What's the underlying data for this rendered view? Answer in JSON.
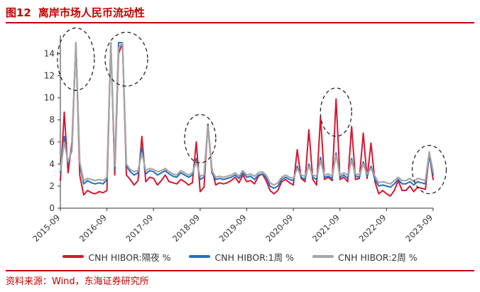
{
  "figure": {
    "number": "图12",
    "title": "离岸市场人民币流动性",
    "source": "资料来源：Wind，东海证券研究所"
  },
  "colors": {
    "overnight": "#d7172f",
    "one_week": "#2370c0",
    "two_week": "#a6a6a6",
    "title": "#c00000",
    "annotation": "#222222"
  },
  "chart_data": {
    "type": "line",
    "title": "离岸市场人民币流动性",
    "xlabel": "",
    "ylabel": "",
    "x_range": [
      "2015-09",
      "2023-09"
    ],
    "ylim": [
      0,
      15
    ],
    "yticks": [
      0,
      2,
      4,
      6,
      8,
      10,
      12,
      14
    ],
    "xticks": [
      "2015-09",
      "2016-09",
      "2017-09",
      "2018-09",
      "2019-09",
      "2020-09",
      "2021-09",
      "2022-09",
      "2023-09"
    ],
    "grid": false,
    "legend": "bottom",
    "x": [
      "2015-09",
      "2015-10",
      "2015-11",
      "2015-12",
      "2016-01",
      "2016-02",
      "2016-03",
      "2016-04",
      "2016-05",
      "2016-06",
      "2016-07",
      "2016-08",
      "2016-09",
      "2016-10",
      "2016-11",
      "2016-12",
      "2017-01",
      "2017-02",
      "2017-03",
      "2017-04",
      "2017-05",
      "2017-06",
      "2017-07",
      "2017-08",
      "2017-09",
      "2017-10",
      "2017-11",
      "2017-12",
      "2018-01",
      "2018-02",
      "2018-03",
      "2018-04",
      "2018-05",
      "2018-06",
      "2018-07",
      "2018-08",
      "2018-09",
      "2018-10",
      "2018-11",
      "2018-12",
      "2019-01",
      "2019-02",
      "2019-03",
      "2019-04",
      "2019-05",
      "2019-06",
      "2019-07",
      "2019-08",
      "2019-09",
      "2019-10",
      "2019-11",
      "2019-12",
      "2020-01",
      "2020-02",
      "2020-03",
      "2020-04",
      "2020-05",
      "2020-06",
      "2020-07",
      "2020-08",
      "2020-09",
      "2020-10",
      "2020-11",
      "2020-12",
      "2021-01",
      "2021-02",
      "2021-03",
      "2021-04",
      "2021-05",
      "2021-06",
      "2021-07",
      "2021-08",
      "2021-09",
      "2021-10",
      "2021-11",
      "2021-12",
      "2022-01",
      "2022-02",
      "2022-03",
      "2022-04",
      "2022-05",
      "2022-06",
      "2022-07",
      "2022-08",
      "2022-09",
      "2022-10",
      "2022-11",
      "2022-12",
      "2023-01",
      "2023-02",
      "2023-03",
      "2023-04",
      "2023-05",
      "2023-06",
      "2023-07",
      "2023-08",
      "2023-09"
    ],
    "series": [
      {
        "name": "CNH HIBOR:隔夜 %",
        "key": "overnight",
        "values": [
          2.5,
          8.7,
          3.2,
          6.0,
          15.0,
          3.0,
          1.2,
          1.6,
          1.4,
          1.3,
          1.5,
          1.4,
          1.6,
          15.0,
          3.0,
          14.0,
          15.0,
          3.0,
          2.6,
          2.1,
          2.5,
          6.5,
          2.4,
          2.8,
          2.7,
          2.1,
          2.5,
          3.0,
          2.4,
          2.3,
          2.2,
          2.6,
          2.4,
          2.1,
          2.3,
          6.0,
          1.5,
          1.9,
          7.6,
          3.6,
          2.1,
          2.3,
          2.2,
          2.3,
          2.5,
          2.8,
          2.3,
          3.0,
          2.4,
          2.5,
          2.2,
          2.9,
          3.1,
          2.5,
          1.6,
          1.3,
          1.6,
          2.4,
          2.6,
          2.3,
          2.1,
          5.3,
          2.7,
          2.4,
          7.1,
          2.6,
          2.1,
          8.3,
          2.6,
          2.8,
          2.5,
          9.9,
          2.6,
          2.8,
          2.4,
          7.4,
          2.6,
          2.7,
          6.8,
          2.7,
          5.9,
          2.4,
          1.3,
          1.6,
          1.3,
          1.1,
          1.6,
          2.5,
          1.6,
          1.6,
          2.0,
          1.5,
          1.9,
          1.8,
          1.7,
          4.9,
          2.6
        ]
      },
      {
        "name": "CNH HIBOR:1周 %",
        "key": "one_week",
        "values": [
          3.2,
          6.5,
          4.0,
          5.5,
          15.0,
          4.0,
          2.2,
          2.5,
          2.3,
          2.2,
          2.3,
          2.2,
          2.6,
          15.0,
          3.5,
          15.0,
          15.0,
          3.8,
          3.3,
          3.0,
          3.2,
          5.5,
          3.1,
          3.4,
          3.3,
          3.0,
          3.2,
          3.4,
          3.1,
          2.9,
          2.8,
          3.2,
          3.0,
          2.8,
          3.0,
          4.5,
          2.6,
          2.8,
          7.6,
          3.2,
          2.6,
          2.7,
          2.6,
          2.7,
          2.8,
          3.0,
          2.7,
          3.2,
          2.8,
          2.9,
          2.6,
          3.0,
          3.1,
          2.8,
          2.0,
          1.8,
          2.0,
          2.6,
          2.8,
          2.6,
          2.5,
          3.8,
          2.8,
          2.6,
          4.0,
          2.8,
          2.6,
          4.6,
          2.8,
          2.9,
          2.7,
          5.0,
          2.8,
          3.0,
          2.7,
          4.5,
          2.9,
          2.8,
          4.2,
          2.9,
          3.8,
          2.6,
          2.0,
          2.1,
          2.0,
          1.9,
          2.2,
          2.6,
          2.2,
          2.2,
          2.4,
          2.1,
          2.4,
          2.3,
          2.2,
          4.8,
          3.0
        ]
      },
      {
        "name": "CNH HIBOR:2周 %",
        "key": "two_week",
        "values": [
          3.4,
          6.0,
          4.2,
          5.2,
          15.0,
          4.2,
          2.5,
          2.7,
          2.6,
          2.5,
          2.6,
          2.5,
          2.8,
          15.0,
          3.8,
          14.5,
          15.0,
          4.0,
          3.5,
          3.3,
          3.4,
          5.0,
          3.4,
          3.6,
          3.5,
          3.3,
          3.4,
          3.6,
          3.3,
          3.1,
          3.0,
          3.4,
          3.2,
          3.0,
          3.2,
          4.2,
          2.9,
          3.0,
          7.4,
          3.4,
          2.8,
          2.9,
          2.8,
          2.9,
          3.0,
          3.2,
          2.9,
          3.4,
          3.0,
          3.1,
          2.9,
          3.2,
          3.3,
          3.0,
          2.3,
          2.1,
          2.3,
          2.8,
          3.0,
          2.8,
          2.7,
          3.6,
          3.0,
          2.9,
          3.8,
          3.0,
          2.9,
          4.3,
          3.0,
          3.1,
          2.9,
          4.8,
          3.0,
          3.2,
          3.0,
          4.3,
          3.1,
          3.0,
          4.0,
          3.1,
          3.6,
          2.9,
          2.3,
          2.4,
          2.3,
          2.2,
          2.5,
          2.8,
          2.5,
          2.5,
          2.7,
          2.4,
          2.7,
          2.6,
          2.5,
          5.1,
          3.3
        ]
      }
    ],
    "annotations": [
      {
        "type": "dashed-ellipse",
        "x_center": "2016-01",
        "y_center": 13.5
      },
      {
        "type": "dashed-ellipse",
        "x_center": "2017-02",
        "y_center": 13.5
      },
      {
        "type": "dashed-ellipse",
        "x_center": "2018-09",
        "y_center": 6.3
      },
      {
        "type": "dashed-ellipse",
        "x_center": "2021-08",
        "y_center": 8.7
      },
      {
        "type": "dashed-ellipse",
        "x_center": "2023-08",
        "y_center": 3.5
      }
    ]
  }
}
